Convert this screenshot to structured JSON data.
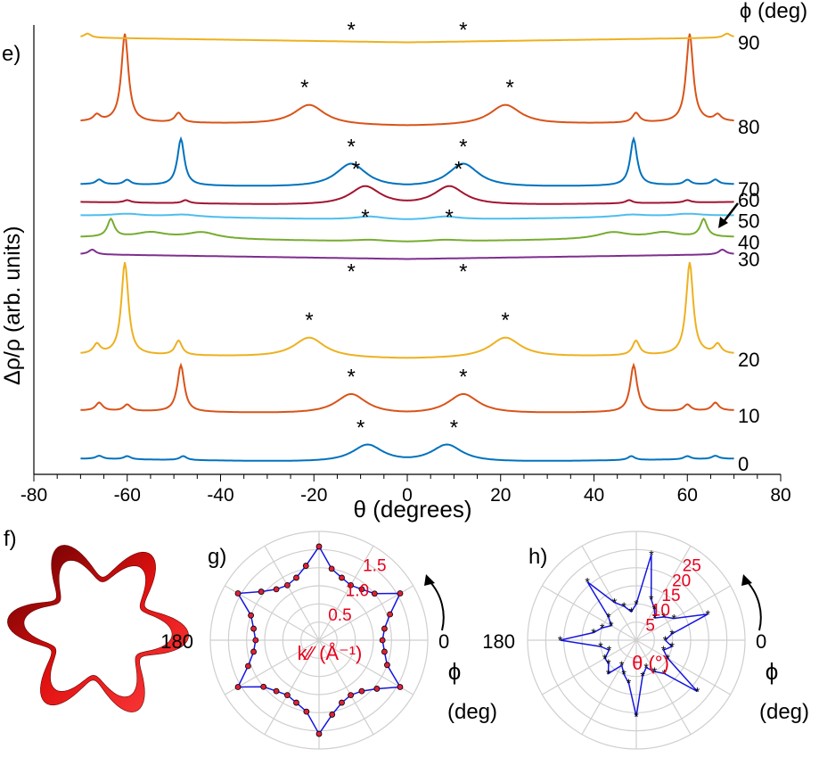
{
  "panels": {
    "e": {
      "letter": "e)"
    },
    "f": {
      "letter": "f)"
    },
    "g": {
      "letter": "g)"
    },
    "h": {
      "letter": "h)"
    }
  },
  "chart_data": [
    {
      "panel": "e",
      "type": "line",
      "xlabel": "θ (degrees)",
      "ylabel": "Δρ/ρ (arb. units)",
      "xlim": [
        -80,
        80
      ],
      "xticks": [
        -80,
        -60,
        -40,
        -20,
        0,
        20,
        40,
        60,
        80
      ],
      "phi_header": "ϕ (deg)",
      "legend": "right",
      "grid": false,
      "marker_symbol": "*",
      "series": [
        {
          "name": "0",
          "color": "#0072BD",
          "base": 0,
          "peaks_sharp": [
            48,
            60,
            66
          ],
          "amp_sharp": [
            5,
            4,
            4
          ],
          "peaks_broad": [
            8.5
          ],
          "amp_broad": [
            22
          ],
          "star_angle": 10
        },
        {
          "name": "10",
          "color": "#D95319",
          "base": 60,
          "peaks_sharp": [
            48.5,
            60,
            66
          ],
          "amp_sharp": [
            58,
            8,
            10
          ],
          "peaks_broad": [
            12
          ],
          "amp_broad": [
            25
          ],
          "star_angle": 12
        },
        {
          "name": "20",
          "color": "#EDB120",
          "base": 130,
          "peaks_sharp": [
            49,
            60.5,
            66.5
          ],
          "amp_sharp": [
            18,
            115,
            12
          ],
          "peaks_broad": [
            21
          ],
          "amp_broad": [
            25
          ],
          "star_angle": 21
        },
        {
          "name": "30",
          "color": "#7E2F8E",
          "base": 255,
          "peaks_sharp": [
            67.5
          ],
          "amp_sharp": [
            6
          ],
          "peaks_broad": [],
          "amp_broad": [],
          "star_angle": 12
        },
        {
          "name": "40",
          "color": "#77AC30",
          "base": 276,
          "peaks_sharp": [
            63.5
          ],
          "amp_sharp": [
            22
          ],
          "peaks_broad": [
            44,
            55,
            8
          ],
          "amp_broad": [
            8,
            7,
            2
          ],
          "star_angle": 9
        },
        {
          "name": "50",
          "color": "#4DBEEE",
          "base": 303,
          "peaks_sharp": [],
          "amp_sharp": [],
          "peaks_broad": [
            48,
            60,
            8
          ],
          "amp_broad": [
            3,
            3,
            4
          ],
          "star_angle": 0
        },
        {
          "name": "60",
          "color": "#A2142F",
          "base": 320,
          "peaks_sharp": [
            47.5,
            60
          ],
          "amp_sharp": [
            4,
            3
          ],
          "peaks_broad": [
            9
          ],
          "amp_broad": [
            24
          ],
          "star_angle": 11
        },
        {
          "name": "70",
          "color": "#0072BD",
          "base": 342,
          "peaks_sharp": [
            48.5,
            60,
            66
          ],
          "amp_sharp": [
            58,
            6,
            6
          ],
          "peaks_broad": [
            12
          ],
          "amp_broad": [
            30
          ],
          "star_angle": 12
        },
        {
          "name": "80",
          "color": "#D95319",
          "base": 420,
          "peaks_sharp": [
            49,
            60.5,
            66.5
          ],
          "amp_sharp": [
            12,
            110,
            8
          ],
          "peaks_broad": [
            21
          ],
          "amp_broad": [
            25
          ],
          "star_angle": 22
        },
        {
          "name": "90",
          "color": "#EDB120",
          "base": 525,
          "peaks_sharp": [
            68.5
          ],
          "amp_sharp": [
            5
          ],
          "peaks_broad": [],
          "amp_broad": [],
          "star_angle": 12
        }
      ]
    },
    {
      "panel": "g",
      "type": "polar",
      "rlabel": "k∕∕ (Å⁻¹)",
      "r_ticks": [
        "0.5",
        "1.0",
        "1.5"
      ],
      "r_tick_values": [
        0.5,
        1.0,
        1.5
      ],
      "rmax": 1.8,
      "angle_labels": {
        "zero": "0",
        "one_eighty": "180"
      },
      "phi_label": "ϕ",
      "phi_unit": "(deg)",
      "theta_deg": [
        0,
        10,
        20,
        30,
        40,
        50,
        60,
        70,
        80,
        90,
        100,
        110,
        120,
        130,
        140,
        150,
        160,
        170,
        180,
        190,
        200,
        210,
        220,
        230,
        240,
        250,
        260,
        270,
        280,
        290,
        300,
        310,
        320,
        330,
        340,
        350
      ],
      "r": [
        1.05,
        1.1,
        1.25,
        1.55,
        1.2,
        1.1,
        1.05,
        1.1,
        1.2,
        1.55,
        1.25,
        1.1,
        1.05,
        1.1,
        1.25,
        1.55,
        1.2,
        1.1,
        1.05,
        1.1,
        1.25,
        1.55,
        1.2,
        1.1,
        1.05,
        1.1,
        1.2,
        1.55,
        1.25,
        1.1,
        1.05,
        1.1,
        1.25,
        1.55,
        1.2,
        1.1
      ]
    },
    {
      "panel": "h",
      "type": "polar",
      "rlabel": "θ (°)",
      "r_ticks": [
        "5",
        "10",
        "15",
        "20",
        "25"
      ],
      "r_tick_values": [
        5,
        10,
        15,
        20,
        25
      ],
      "rmax": 30,
      "angle_labels": {
        "zero": "0",
        "one_eighty": "180"
      },
      "phi_label": "ϕ",
      "phi_unit": "(deg)",
      "theta_deg": [
        0,
        10,
        20,
        30,
        40,
        50,
        60,
        70,
        80,
        90,
        100,
        110,
        120,
        130,
        140,
        150,
        160,
        170,
        180,
        190,
        200,
        210,
        220,
        230,
        240,
        250,
        260,
        270,
        280,
        290,
        300,
        310,
        320,
        330,
        340,
        350
      ],
      "r": [
        8,
        10,
        21,
        12,
        10,
        8,
        10,
        12,
        24,
        10,
        8,
        10,
        12,
        21,
        10,
        8,
        10,
        12,
        21,
        10,
        8,
        10,
        10,
        12,
        8,
        10,
        12,
        21,
        10,
        8,
        10,
        12,
        22,
        10,
        8,
        10
      ]
    }
  ]
}
